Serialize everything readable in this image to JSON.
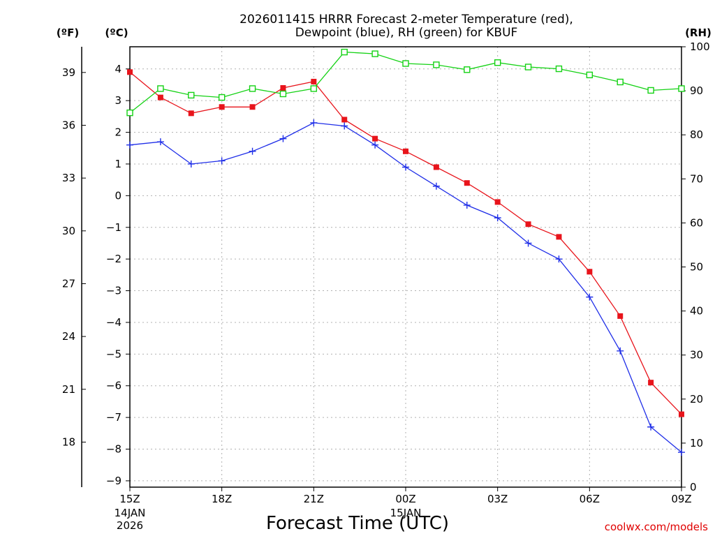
{
  "chart_data": {
    "type": "line",
    "title_line1": "2026011415 HRRR Forecast 2-meter Temperature (red),",
    "title_line2": "Dewpoint (blue), RH (green) for KBUF",
    "xlabel": "Forecast Time (UTC)",
    "credit": "coolwx.com/models",
    "unit_f": "(ºF)",
    "unit_c": "(ºC)",
    "unit_rh": "(RH)",
    "x_hours": [
      0,
      1,
      2,
      3,
      4,
      5,
      6,
      7,
      8,
      9,
      10,
      11,
      12,
      13,
      14,
      15,
      16,
      17,
      18
    ],
    "x_ticks": [
      {
        "hour": 0,
        "label": "15Z",
        "sub1": "14JAN",
        "sub2": "2026"
      },
      {
        "hour": 3,
        "label": "18Z",
        "sub1": "",
        "sub2": ""
      },
      {
        "hour": 6,
        "label": "21Z",
        "sub1": "",
        "sub2": ""
      },
      {
        "hour": 9,
        "label": "00Z",
        "sub1": "15JAN",
        "sub2": ""
      },
      {
        "hour": 12,
        "label": "03Z",
        "sub1": "",
        "sub2": ""
      },
      {
        "hour": 15,
        "label": "06Z",
        "sub1": "",
        "sub2": ""
      },
      {
        "hour": 18,
        "label": "09Z",
        "sub1": "",
        "sub2": ""
      }
    ],
    "y_c_range": [
      -9.2,
      4.7
    ],
    "y_c_ticks": [
      "4",
      "3",
      "2",
      "1",
      "0",
      "−1",
      "−2",
      "−3",
      "−4",
      "−5",
      "−6",
      "−7",
      "−8",
      "−9"
    ],
    "y_c_tick_values": [
      4,
      3,
      2,
      1,
      0,
      -1,
      -2,
      -3,
      -4,
      -5,
      -6,
      -7,
      -8,
      -9
    ],
    "y_f_ticks": [
      "39",
      "36",
      "33",
      "30",
      "27",
      "24",
      "21",
      "18"
    ],
    "y_f_tick_values": [
      39,
      36,
      33,
      30,
      27,
      24,
      21,
      18
    ],
    "y_rh_range": [
      0,
      100
    ],
    "y_rh_ticks": [
      "100",
      "90",
      "80",
      "70",
      "60",
      "50",
      "40",
      "30",
      "20",
      "10",
      "0"
    ],
    "y_rh_tick_values": [
      100,
      90,
      80,
      70,
      60,
      50,
      40,
      30,
      20,
      10,
      0
    ],
    "series": [
      {
        "name": "Temperature",
        "color": "#e8141b",
        "axis": "c",
        "marker": "filled-square",
        "values": [
          3.9,
          3.1,
          2.6,
          2.8,
          2.8,
          3.4,
          3.6,
          2.4,
          1.8,
          1.4,
          0.9,
          0.4,
          -0.2,
          -0.9,
          -1.3,
          -2.4,
          -3.8,
          -5.9,
          -6.9
        ]
      },
      {
        "name": "Dewpoint",
        "color": "#1f2ee8",
        "axis": "c",
        "marker": "plus",
        "values": [
          1.6,
          1.7,
          1.0,
          1.1,
          1.4,
          1.8,
          2.3,
          2.2,
          1.6,
          0.9,
          0.3,
          -0.3,
          -0.7,
          -1.5,
          -2.0,
          -3.2,
          -4.9,
          -7.3,
          -8.1
        ]
      },
      {
        "name": "RH",
        "color": "#14d214",
        "axis": "rh",
        "marker": "open-square",
        "values": [
          85,
          90.5,
          89,
          88.5,
          90.5,
          89.3,
          90.5,
          98.8,
          98.4,
          96.2,
          95.9,
          94.8,
          96.4,
          95.4,
          95.0,
          93.6,
          92.0,
          90.1,
          90.5
        ]
      }
    ]
  }
}
